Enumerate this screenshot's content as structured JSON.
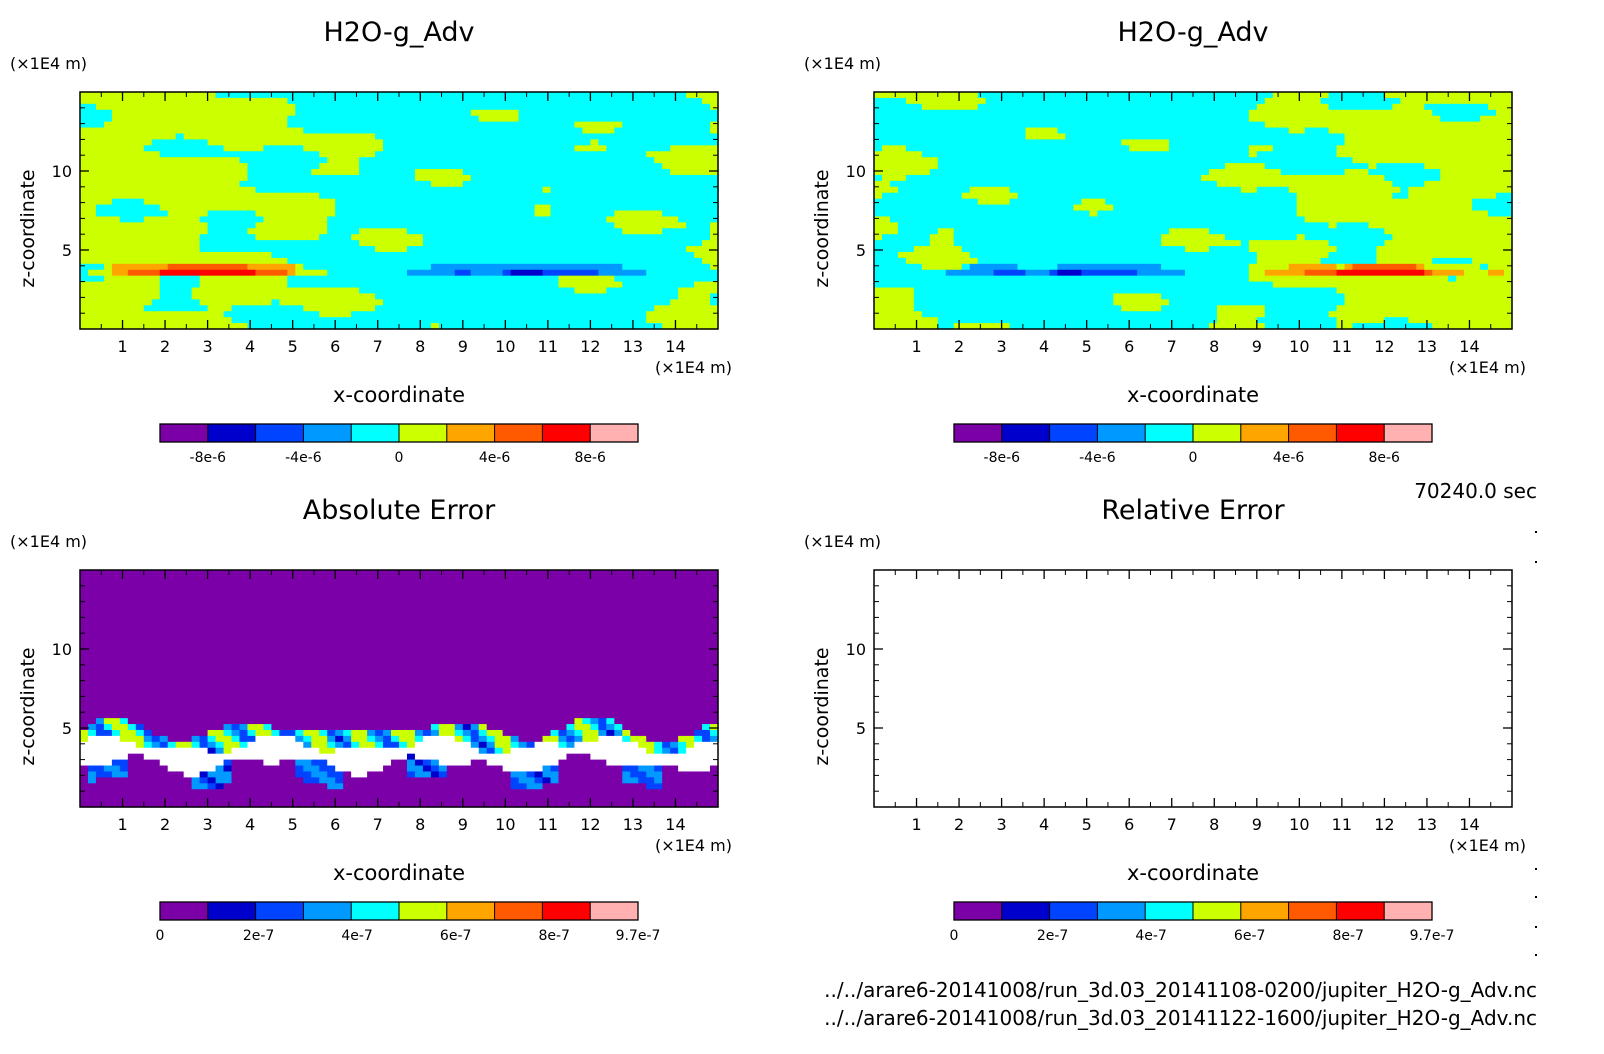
{
  "chart_data": [
    {
      "type": "heatmap",
      "title": "H2O-g_Adv",
      "xlabel": "x-coordinate",
      "ylabel": "z-coordinate",
      "x_unit": "(×1E4 m)",
      "y_unit": "(×1E4 m)",
      "x_ticks": [
        "1",
        "2",
        "3",
        "4",
        "5",
        "6",
        "7",
        "8",
        "9",
        "10",
        "11",
        "12",
        "13",
        "14"
      ],
      "y_ticks": [
        "5",
        "10"
      ],
      "xlim": [
        0,
        15
      ],
      "ylim": [
        0,
        15
      ],
      "colorbar": {
        "levels": [
          -1e-05,
          -8e-06,
          -6e-06,
          -4e-06,
          -2e-06,
          0,
          2e-06,
          4e-06,
          6e-06,
          8e-06,
          1e-05
        ],
        "labels": [
          "-8e-6",
          "-4e-6",
          "0",
          "4e-6",
          "8e-6"
        ],
        "colors": [
          "#7b00a8",
          "#0000cc",
          "#0044ff",
          "#0099ff",
          "#00ffff",
          "#ccff00",
          "#ffa500",
          "#ff5a00",
          "#ff0000",
          "#ffb0b0"
        ]
      },
      "pattern": "left"
    },
    {
      "type": "heatmap",
      "title": "H2O-g_Adv",
      "xlabel": "x-coordinate",
      "ylabel": "z-coordinate",
      "x_unit": "(×1E4 m)",
      "y_unit": "(×1E4 m)",
      "x_ticks": [
        "1",
        "2",
        "3",
        "4",
        "5",
        "6",
        "7",
        "8",
        "9",
        "10",
        "11",
        "12",
        "13",
        "14"
      ],
      "y_ticks": [
        "5",
        "10"
      ],
      "xlim": [
        0,
        15
      ],
      "ylim": [
        0,
        15
      ],
      "colorbar": {
        "levels": [
          -1e-05,
          -8e-06,
          -6e-06,
          -4e-06,
          -2e-06,
          0,
          2e-06,
          4e-06,
          6e-06,
          8e-06,
          1e-05
        ],
        "labels": [
          "-8e-6",
          "-4e-6",
          "0",
          "4e-6",
          "8e-6"
        ],
        "colors": [
          "#7b00a8",
          "#0000cc",
          "#0044ff",
          "#0099ff",
          "#00ffff",
          "#ccff00",
          "#ffa500",
          "#ff5a00",
          "#ff0000",
          "#ffb0b0"
        ]
      },
      "pattern": "right"
    },
    {
      "type": "heatmap",
      "title": "Absolute Error",
      "xlabel": "x-coordinate",
      "ylabel": "z-coordinate",
      "x_unit": "(×1E4 m)",
      "y_unit": "(×1E4 m)",
      "x_ticks": [
        "1",
        "2",
        "3",
        "4",
        "5",
        "6",
        "7",
        "8",
        "9",
        "10",
        "11",
        "12",
        "13",
        "14"
      ],
      "y_ticks": [
        "5",
        "10"
      ],
      "xlim": [
        0,
        15
      ],
      "ylim": [
        0,
        15
      ],
      "colorbar": {
        "levels": [
          0,
          9.7e-08,
          1.94e-07,
          2.91e-07,
          3.88e-07,
          4.85e-07,
          5.82e-07,
          6.79e-07,
          7.76e-07,
          8.73e-07,
          9.7e-07
        ],
        "labels": [
          "0",
          "2e-7",
          "4e-7",
          "6e-7",
          "8e-7",
          "9.7e-7"
        ],
        "colors": [
          "#7b00a8",
          "#0000cc",
          "#0044ff",
          "#0099ff",
          "#00ffff",
          "#ccff00",
          "#ffa500",
          "#ff5a00",
          "#ff0000",
          "#ffb0b0"
        ]
      },
      "pattern": "abs"
    },
    {
      "type": "heatmap",
      "title": "Relative Error",
      "xlabel": "x-coordinate",
      "ylabel": "z-coordinate",
      "x_unit": "(×1E4 m)",
      "y_unit": "(×1E4 m)",
      "x_ticks": [
        "1",
        "2",
        "3",
        "4",
        "5",
        "6",
        "7",
        "8",
        "9",
        "10",
        "11",
        "12",
        "13",
        "14"
      ],
      "y_ticks": [
        "5",
        "10"
      ],
      "xlim": [
        0,
        15
      ],
      "ylim": [
        0,
        15
      ],
      "colorbar": {
        "levels": [
          0,
          9.7e-08,
          1.94e-07,
          2.91e-07,
          3.88e-07,
          4.85e-07,
          5.82e-07,
          6.79e-07,
          7.76e-07,
          8.73e-07,
          9.7e-07
        ],
        "labels": [
          "0",
          "2e-7",
          "4e-7",
          "6e-7",
          "8e-7",
          "9.7e-7"
        ],
        "colors": [
          "#7b00a8",
          "#0000cc",
          "#0044ff",
          "#0099ff",
          "#00ffff",
          "#ccff00",
          "#ffa500",
          "#ff5a00",
          "#ff0000",
          "#ffb0b0"
        ]
      },
      "pattern": "empty"
    }
  ],
  "info": {
    "time": "70240.0 sec",
    "file1": "../../arare6-20141008/run_3d.03_20141108-0200/jupiter_H2O-g_Adv.nc",
    "file2": "../../arare6-20141008/run_3d.03_20141122-1600/jupiter_H2O-g_Adv.nc"
  }
}
